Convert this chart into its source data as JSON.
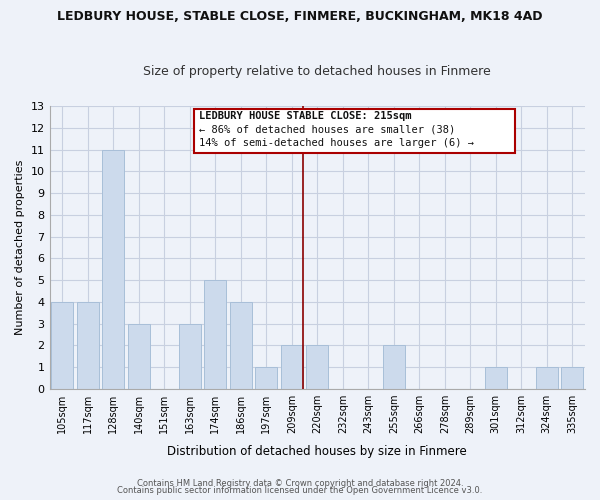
{
  "title": "LEDBURY HOUSE, STABLE CLOSE, FINMERE, BUCKINGHAM, MK18 4AD",
  "subtitle": "Size of property relative to detached houses in Finmere",
  "xlabel": "Distribution of detached houses by size in Finmere",
  "ylabel": "Number of detached properties",
  "bar_labels": [
    "105sqm",
    "117sqm",
    "128sqm",
    "140sqm",
    "151sqm",
    "163sqm",
    "174sqm",
    "186sqm",
    "197sqm",
    "209sqm",
    "220sqm",
    "232sqm",
    "243sqm",
    "255sqm",
    "266sqm",
    "278sqm",
    "289sqm",
    "301sqm",
    "312sqm",
    "324sqm",
    "335sqm"
  ],
  "bar_values": [
    4,
    4,
    11,
    3,
    0,
    3,
    5,
    4,
    1,
    2,
    2,
    0,
    0,
    2,
    0,
    0,
    0,
    1,
    0,
    1,
    1
  ],
  "bar_color": "#ccdaec",
  "bar_edge_color": "#a8bfd8",
  "ylim": [
    0,
    13
  ],
  "yticks": [
    0,
    1,
    2,
    3,
    4,
    5,
    6,
    7,
    8,
    9,
    10,
    11,
    12,
    13
  ],
  "annotation_title": "LEDBURY HOUSE STABLE CLOSE: 215sqm",
  "annotation_line1": "← 86% of detached houses are smaller (38)",
  "annotation_line2": "14% of semi-detached houses are larger (6) →",
  "annotation_box_color": "#ffffff",
  "annotation_box_edge": "#aa0000",
  "vline_color": "#8b0000",
  "vline_x": 9.43,
  "footer1": "Contains HM Land Registry data © Crown copyright and database right 2024.",
  "footer2": "Contains public sector information licensed under the Open Government Licence v3.0.",
  "background_color": "#eef2f9",
  "plot_bg_color": "#eef2f9",
  "grid_color": "#c8d0e0"
}
